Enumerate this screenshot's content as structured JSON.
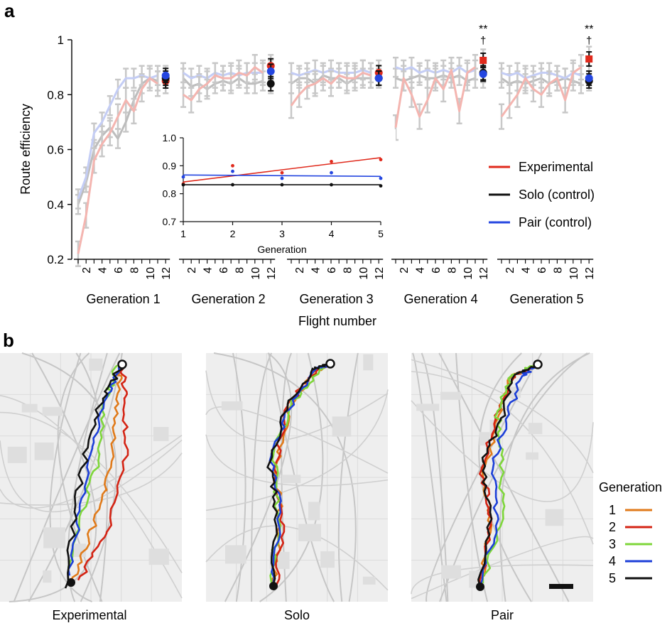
{
  "panel_a": {
    "label": "a"
  },
  "panel_b": {
    "label": "b"
  },
  "colors": {
    "experimental": "#e02a1c",
    "solo": "#111111",
    "pair": "#2446e0",
    "experimental_light": "#f4b5b0",
    "solo_light": "#bdbdbd",
    "pair_light": "#c4cdf5",
    "gen1": "#e07a1a",
    "gen2": "#d42414",
    "gen3": "#7ed63a",
    "gen4": "#1c3fd8",
    "gen5": "#111111",
    "map_bg": "#eeeeee"
  },
  "chart_data": [
    {
      "type": "line",
      "ylabel": "Route efficiency",
      "xlabel": "Flight number",
      "ylim": [
        0.2,
        1.0
      ],
      "yticks": [
        "0.2",
        "0.4",
        "0.6",
        "0.8",
        "1"
      ],
      "xticks_per_group": [
        "2",
        "4",
        "6",
        "8",
        "10",
        "12"
      ],
      "groups": [
        "Generation 1",
        "Generation 2",
        "Generation 3",
        "Generation 4",
        "Generation 5"
      ],
      "legend": [
        "Experimental",
        "Solo (control)",
        "Pair (control)"
      ],
      "legend_position": "right",
      "annotations": [
        {
          "generation": 4,
          "stars": "**",
          "dagger": "†"
        },
        {
          "generation": 5,
          "stars": "**",
          "dagger": "†"
        }
      ],
      "series": [
        {
          "name": "Experimental",
          "generations": [
            [
              0.22,
              0.36,
              0.56,
              0.62,
              0.66,
              0.72,
              0.78,
              0.74,
              0.82,
              0.86,
              0.84,
              0.85
            ],
            [
              0.8,
              0.78,
              0.82,
              0.84,
              0.87,
              0.86,
              0.86,
              0.88,
              0.87,
              0.9,
              0.88,
              0.9
            ],
            [
              0.76,
              0.8,
              0.83,
              0.84,
              0.86,
              0.84,
              0.87,
              0.86,
              0.86,
              0.88,
              0.87,
              0.88
            ],
            [
              0.68,
              0.86,
              0.8,
              0.72,
              0.78,
              0.86,
              0.82,
              0.89,
              0.74,
              0.88,
              0.9,
              0.92
            ],
            [
              0.72,
              0.76,
              0.8,
              0.86,
              0.82,
              0.8,
              0.84,
              0.86,
              0.78,
              0.88,
              0.9,
              0.93
            ]
          ]
        },
        {
          "name": "Solo (control)",
          "generations": [
            [
              0.4,
              0.48,
              0.6,
              0.65,
              0.68,
              0.64,
              0.7,
              0.78,
              0.84,
              0.86,
              0.85,
              0.84
            ],
            [
              0.86,
              0.83,
              0.84,
              0.82,
              0.84,
              0.85,
              0.84,
              0.86,
              0.84,
              0.84,
              0.85,
              0.84
            ],
            [
              0.84,
              0.86,
              0.86,
              0.84,
              0.87,
              0.86,
              0.86,
              0.84,
              0.86,
              0.86,
              0.86,
              0.86
            ],
            [
              0.86,
              0.85,
              0.86,
              0.87,
              0.86,
              0.86,
              0.87,
              0.86,
              0.87,
              0.85,
              0.86,
              0.86
            ],
            [
              0.86,
              0.84,
              0.85,
              0.84,
              0.85,
              0.86,
              0.84,
              0.85,
              0.86,
              0.85,
              0.84,
              0.85
            ]
          ]
        },
        {
          "name": "Pair (control)",
          "generations": [
            [
              0.42,
              0.5,
              0.66,
              0.7,
              0.76,
              0.82,
              0.86,
              0.86,
              0.87,
              0.86,
              0.87,
              0.87
            ],
            [
              0.88,
              0.86,
              0.87,
              0.86,
              0.88,
              0.87,
              0.88,
              0.87,
              0.88,
              0.88,
              0.88,
              0.89
            ],
            [
              0.88,
              0.87,
              0.88,
              0.89,
              0.88,
              0.89,
              0.88,
              0.88,
              0.88,
              0.89,
              0.88,
              0.87
            ],
            [
              0.9,
              0.89,
              0.9,
              0.88,
              0.89,
              0.88,
              0.89,
              0.88,
              0.9,
              0.88,
              0.89,
              0.88
            ],
            [
              0.88,
              0.87,
              0.88,
              0.86,
              0.87,
              0.88,
              0.88,
              0.87,
              0.86,
              0.88,
              0.87,
              0.87
            ]
          ]
        }
      ],
      "final_points": [
        {
          "name": "Experimental",
          "values": [
            0.85,
            0.905,
            0.88,
            0.925,
            0.93
          ]
        },
        {
          "name": "Solo (control)",
          "values": [
            0.86,
            0.84,
            0.86,
            0.88,
            0.85
          ]
        },
        {
          "name": "Pair (control)",
          "values": [
            0.87,
            0.885,
            0.86,
            0.875,
            0.86
          ]
        }
      ]
    },
    {
      "type": "scatter",
      "xlabel": "Generation",
      "ylabel": "",
      "xlim": [
        1,
        5
      ],
      "ylim": [
        0.7,
        1.0
      ],
      "yticks": [
        "0.7",
        "0.8",
        "0.9",
        "1.0"
      ],
      "xticks": [
        "1",
        "2",
        "3",
        "4",
        "5"
      ],
      "series": [
        {
          "name": "Experimental",
          "x": [
            1,
            2,
            3,
            4,
            5
          ],
          "y": [
            0.835,
            0.9,
            0.875,
            0.915,
            0.922
          ],
          "fit": [
            0.842,
            0.929
          ]
        },
        {
          "name": "Solo (control)",
          "x": [
            1,
            2,
            3,
            4,
            5
          ],
          "y": [
            0.832,
            0.832,
            0.832,
            0.832,
            0.828
          ],
          "fit": [
            0.832,
            0.832
          ]
        },
        {
          "name": "Pair (control)",
          "x": [
            1,
            2,
            3,
            4,
            5
          ],
          "y": [
            0.86,
            0.88,
            0.855,
            0.875,
            0.855
          ],
          "fit": [
            0.867,
            0.862
          ]
        }
      ]
    }
  ],
  "maps": [
    {
      "title": "Experimental"
    },
    {
      "title": "Solo"
    },
    {
      "title": "Pair"
    }
  ],
  "gen_legend": {
    "title": "Generation",
    "items": [
      "1",
      "2",
      "3",
      "4",
      "5"
    ]
  }
}
